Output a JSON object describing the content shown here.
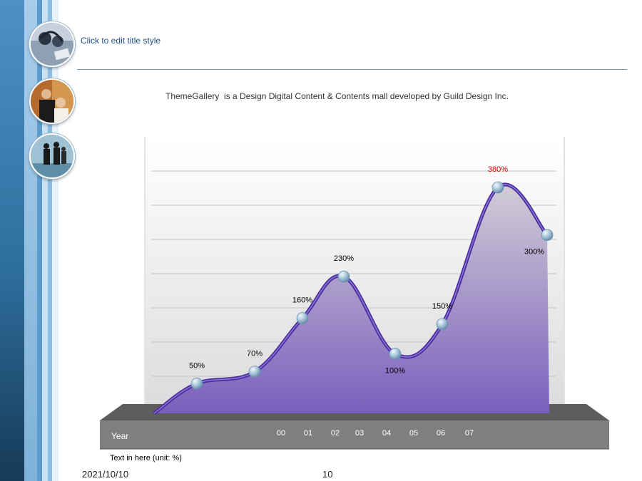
{
  "slide": {
    "title": "Click to edit title style",
    "description": "ThemeGallery  is a Design Digital Content & Contents mall developed by Guild Design Inc.",
    "footnote": "Text in here  (unit: %)",
    "date": "2021/10/10",
    "page_number": "10"
  },
  "sidebar": {
    "photos": [
      {
        "icon": "headphones-icon"
      },
      {
        "icon": "business-people-icon"
      },
      {
        "icon": "walking-people-icon"
      }
    ]
  },
  "chart_data": {
    "type": "area",
    "x_axis_label": "Year",
    "categories": [
      "00",
      "01",
      "02",
      "03",
      "04",
      "05",
      "06",
      "07"
    ],
    "series": [
      {
        "values": [
          50,
          70,
          160,
          230,
          100,
          150,
          380,
          300
        ],
        "labels": [
          "50%",
          "70%",
          "160%",
          "230%",
          "100%",
          "150%",
          "380%",
          "300%"
        ]
      }
    ],
    "highlight_index": 6,
    "grid": true,
    "colors": {
      "area_top": "#d1cdd6",
      "area_bottom": "#7a5ebd",
      "line": "#6a4dbd",
      "marker": "#a8c6da",
      "highlight_label": "#e10000",
      "floor": "#7f7f7f",
      "axis_text": "#ffffff"
    }
  }
}
